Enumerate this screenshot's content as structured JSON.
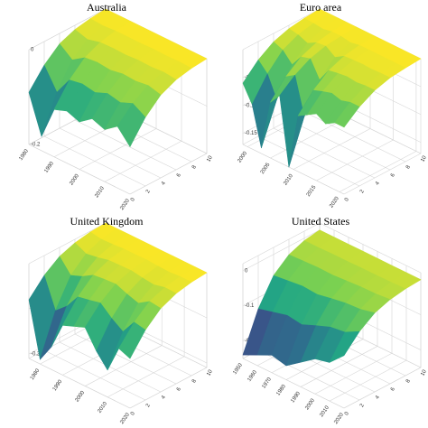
{
  "chart_data": [
    {
      "type": "surface3d",
      "title": "Australia",
      "zlim": [
        -0.2,
        0
      ],
      "zticks": [
        0,
        -0.1,
        -0.2
      ],
      "tlim": [
        1980,
        2020
      ],
      "tticks": [
        1980,
        1990,
        2000,
        2010,
        2020
      ],
      "hlim": [
        0,
        10
      ],
      "hticks": [
        0,
        2,
        4,
        6,
        8,
        10
      ],
      "surface": {
        "time": [
          1980,
          1985,
          1990,
          1995,
          2000,
          2005,
          2010,
          2015,
          2020
        ],
        "horizon": [
          0,
          2,
          4,
          6,
          8,
          10
        ],
        "z": [
          [
            -0.09,
            -0.05,
            -0.022,
            -0.009,
            -0.003,
            0
          ],
          [
            -0.17,
            -0.094,
            -0.043,
            -0.017,
            -0.005,
            0
          ],
          [
            -0.1,
            -0.055,
            -0.025,
            -0.01,
            -0.003,
            0
          ],
          [
            -0.09,
            -0.05,
            -0.022,
            -0.009,
            -0.003,
            0
          ],
          [
            -0.1,
            -0.055,
            -0.025,
            -0.01,
            -0.003,
            0
          ],
          [
            -0.08,
            -0.044,
            -0.02,
            -0.008,
            -0.002,
            0
          ],
          [
            -0.09,
            -0.05,
            -0.022,
            -0.009,
            -0.003,
            0
          ],
          [
            -0.07,
            -0.039,
            -0.018,
            -0.007,
            -0.002,
            0
          ],
          [
            -0.1,
            -0.055,
            -0.025,
            -0.01,
            -0.003,
            0
          ]
        ]
      }
    },
    {
      "type": "surface3d",
      "title": "Euro area",
      "zlim": [
        -0.17,
        0
      ],
      "zticks": [
        -0.05,
        -0.1,
        -0.15
      ],
      "tlim": [
        1999,
        2021
      ],
      "tticks": [
        2000,
        2005,
        2010,
        2015,
        2020
      ],
      "hlim": [
        0,
        10
      ],
      "hticks": [
        0,
        2,
        4,
        6,
        8,
        10
      ],
      "surface": {
        "time": [
          1999,
          2001,
          2003,
          2005,
          2007,
          2009,
          2011,
          2013,
          2015,
          2017,
          2019,
          2021
        ],
        "horizon": [
          0,
          2,
          4,
          6,
          8,
          10
        ],
        "z": [
          [
            -0.06,
            -0.033,
            -0.015,
            -0.006,
            -0.002,
            0
          ],
          [
            -0.09,
            -0.05,
            -0.022,
            -0.009,
            -0.003,
            0
          ],
          [
            -0.16,
            -0.088,
            -0.04,
            -0.016,
            -0.005,
            0
          ],
          [
            -0.07,
            -0.039,
            -0.018,
            -0.007,
            -0.002,
            0
          ],
          [
            -0.05,
            -0.028,
            -0.013,
            -0.005,
            -0.002,
            0
          ],
          [
            -0.17,
            -0.094,
            -0.043,
            -0.017,
            -0.005,
            0
          ],
          [
            -0.07,
            -0.039,
            -0.018,
            -0.007,
            -0.002,
            0
          ],
          [
            -0.06,
            -0.033,
            -0.015,
            -0.006,
            -0.002,
            0
          ],
          [
            -0.05,
            -0.028,
            -0.013,
            -0.005,
            -0.002,
            0
          ],
          [
            -0.06,
            -0.033,
            -0.015,
            -0.006,
            -0.002,
            0
          ],
          [
            -0.05,
            -0.028,
            -0.013,
            -0.005,
            -0.002,
            0
          ],
          [
            -0.05,
            -0.028,
            -0.013,
            -0.005,
            -0.002,
            0
          ]
        ]
      }
    },
    {
      "type": "surface3d",
      "title": "United Kingdom",
      "zlim": [
        -0.21,
        0
      ],
      "zticks": [
        -0.1,
        -0.2
      ],
      "tlim": [
        1975,
        2020
      ],
      "tticks": [
        1980,
        1990,
        2000,
        2010,
        2020
      ],
      "hlim": [
        0,
        10
      ],
      "hticks": [
        0,
        2,
        4,
        6,
        8,
        10
      ],
      "surface": {
        "time": [
          1975,
          1980,
          1985,
          1990,
          1995,
          2000,
          2005,
          2010,
          2015,
          2020
        ],
        "horizon": [
          0,
          2,
          4,
          6,
          8,
          10
        ],
        "z": [
          [
            -0.08,
            -0.044,
            -0.02,
            -0.008,
            -0.002,
            0
          ],
          [
            -0.2,
            -0.11,
            -0.05,
            -0.02,
            -0.006,
            0
          ],
          [
            -0.16,
            -0.088,
            -0.04,
            -0.016,
            -0.005,
            0
          ],
          [
            -0.1,
            -0.055,
            -0.025,
            -0.01,
            -0.003,
            0
          ],
          [
            -0.09,
            -0.05,
            -0.022,
            -0.009,
            -0.003,
            0
          ],
          [
            -0.08,
            -0.044,
            -0.02,
            -0.008,
            -0.002,
            0
          ],
          [
            -0.12,
            -0.066,
            -0.03,
            -0.012,
            -0.004,
            0
          ],
          [
            -0.15,
            -0.083,
            -0.038,
            -0.015,
            -0.005,
            0
          ],
          [
            -0.09,
            -0.05,
            -0.022,
            -0.009,
            -0.003,
            0
          ],
          [
            -0.1,
            -0.055,
            -0.025,
            -0.01,
            -0.003,
            0
          ]
        ]
      }
    },
    {
      "type": "surface3d",
      "title": "United States",
      "zlim": [
        -0.25,
        0.02
      ],
      "zticks": [
        0,
        -0.1,
        -0.2
      ],
      "tlim": [
        1950,
        2020
      ],
      "tticks": [
        1950,
        1960,
        1970,
        1980,
        1990,
        2000,
        2010,
        2020
      ],
      "hlim": [
        0,
        10
      ],
      "hticks": [
        0,
        2,
        4,
        6,
        8,
        10
      ],
      "surface": {
        "time": [
          1950,
          1960,
          1970,
          1980,
          1990,
          2000,
          2010,
          2020
        ],
        "horizon": [
          0,
          2,
          4,
          6,
          8,
          10
        ],
        "z": [
          [
            -0.24,
            -0.132,
            -0.06,
            -0.024,
            -0.007,
            0
          ],
          [
            -0.22,
            -0.121,
            -0.055,
            -0.022,
            -0.007,
            0
          ],
          [
            -0.2,
            -0.11,
            -0.05,
            -0.02,
            -0.006,
            0
          ],
          [
            -0.21,
            -0.116,
            -0.053,
            -0.021,
            -0.006,
            0
          ],
          [
            -0.18,
            -0.099,
            -0.045,
            -0.018,
            -0.005,
            0
          ],
          [
            -0.15,
            -0.083,
            -0.038,
            -0.015,
            -0.005,
            0
          ],
          [
            -0.14,
            -0.077,
            -0.035,
            -0.014,
            -0.004,
            0
          ],
          [
            -0.1,
            -0.055,
            -0.025,
            -0.01,
            -0.003,
            0
          ]
        ]
      }
    }
  ]
}
